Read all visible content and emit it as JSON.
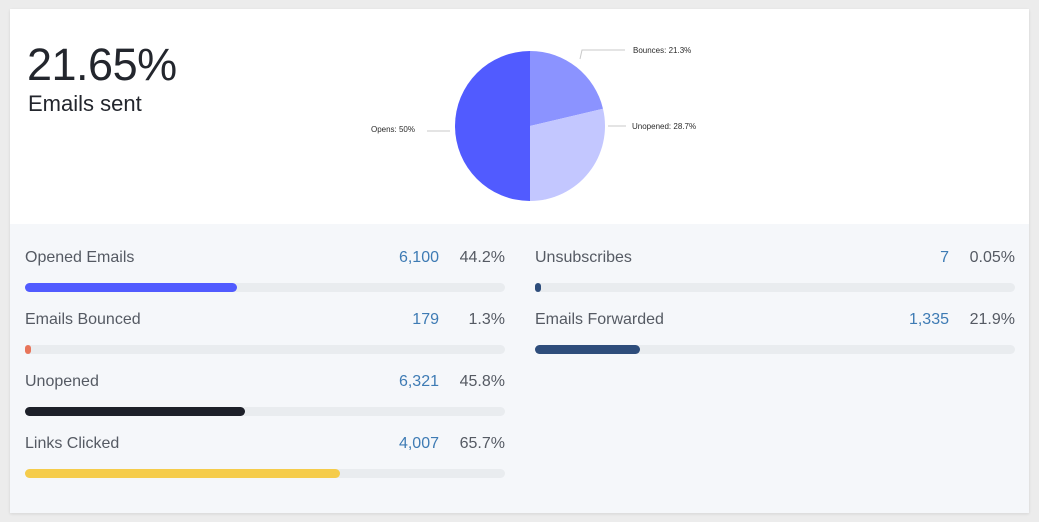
{
  "summary": {
    "headline": "21.65%",
    "subline": "Emails sent"
  },
  "chart_data": {
    "type": "pie",
    "slices": [
      {
        "label": "Bounces: 21.3%",
        "name": "Bounces",
        "value": 21.3,
        "color": "#8b93ff"
      },
      {
        "label": "Unopened: 28.7%",
        "name": "Unopened",
        "value": 28.7,
        "color": "#c3c7ff"
      },
      {
        "label": "Opens: 50%",
        "name": "Opens",
        "value": 50,
        "color": "#515bff"
      }
    ]
  },
  "metrics_left": [
    {
      "label": "Opened Emails",
      "count": "6,100",
      "percent": "44.2%",
      "fill_pct": 44.2,
      "color": "#515bff"
    },
    {
      "label": "Emails Bounced",
      "count": "179",
      "percent": "1.3%",
      "fill_pct": 1.3,
      "color": "#e8755a"
    },
    {
      "label": "Unopened",
      "count": "6,321",
      "percent": "45.8%",
      "fill_pct": 45.8,
      "color": "#1d2029"
    },
    {
      "label": "Links Clicked",
      "count": "4,007",
      "percent": "65.7%",
      "fill_pct": 65.7,
      "color": "#f5cc4b"
    }
  ],
  "metrics_right": [
    {
      "label": "Unsubscribes",
      "count": "7",
      "percent": "0.05%",
      "fill_pct": 0.05,
      "color": "#2e4d7b"
    },
    {
      "label": "Emails Forwarded",
      "count": "1,335",
      "percent": "21.9%",
      "fill_pct": 21.9,
      "color": "#2e4d7b"
    }
  ]
}
